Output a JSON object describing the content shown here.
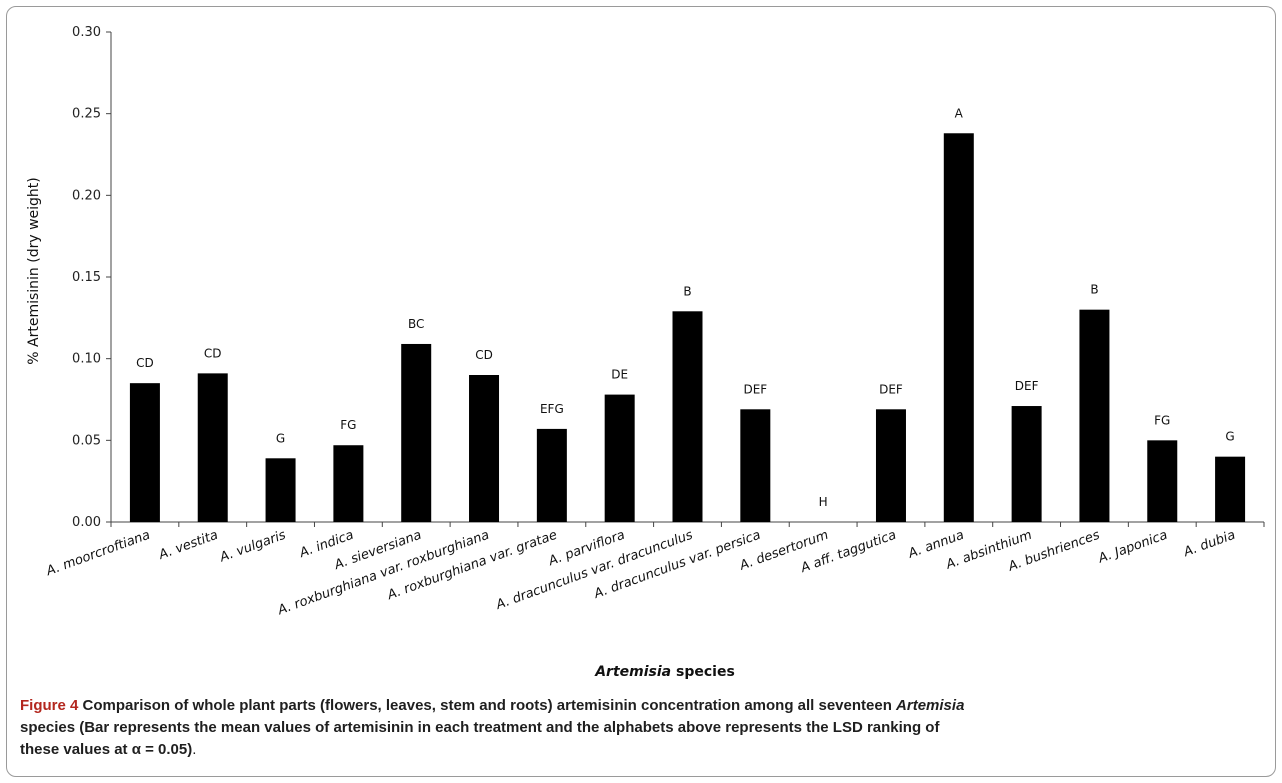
{
  "chart_data": {
    "type": "bar",
    "title": "",
    "ylabel": "% Artemisinin (dry weight)",
    "xlabel_italic": "Artemisia",
    "xlabel_rest": " species",
    "ylim": [
      0,
      0.3
    ],
    "yticks": [
      "0.00",
      "0.05",
      "0.10",
      "0.15",
      "0.20",
      "0.25",
      "0.30"
    ],
    "bar_color": "#000000",
    "grid": false,
    "categories": [
      "A. moorcroftiana",
      "A. vestita",
      "A. vulgaris",
      "A. indica",
      "A. sieversiana",
      "A. roxburghiana var. roxburghiana",
      "A. roxburghiana var. gratae",
      "A. parviflora",
      "A. dracunculus var. dracunculus",
      "A. dracunculus var. persica",
      "A. desertorum",
      "A aff. taggutica",
      "A. annua",
      "A. absinthium",
      "A. bushriences",
      "A. Japonica",
      "A. dubia"
    ],
    "values": [
      0.085,
      0.091,
      0.039,
      0.047,
      0.109,
      0.09,
      0.057,
      0.078,
      0.129,
      0.069,
      0.0,
      0.069,
      0.238,
      0.071,
      0.13,
      0.05,
      0.04
    ],
    "significance_labels": [
      "CD",
      "CD",
      "G",
      "FG",
      "BC",
      "CD",
      "EFG",
      "DE",
      "B",
      "DEF",
      "H",
      "DEF",
      "A",
      "DEF",
      "B",
      "FG",
      "G"
    ]
  },
  "caption": {
    "figure_label": "Figure 4",
    "title_part1": " Comparison of whole plant parts (flowers, leaves, stem and roots) artemisinin concentration among all seventeen ",
    "title_italic": "Artemisia",
    "line2_part1": "species (Bar represents the mean values of artemisinin in each treatment and the alphabets above represents the LSD ranking of",
    "line3_part1": "these values at α = 0.05)",
    "line3_end": "."
  }
}
